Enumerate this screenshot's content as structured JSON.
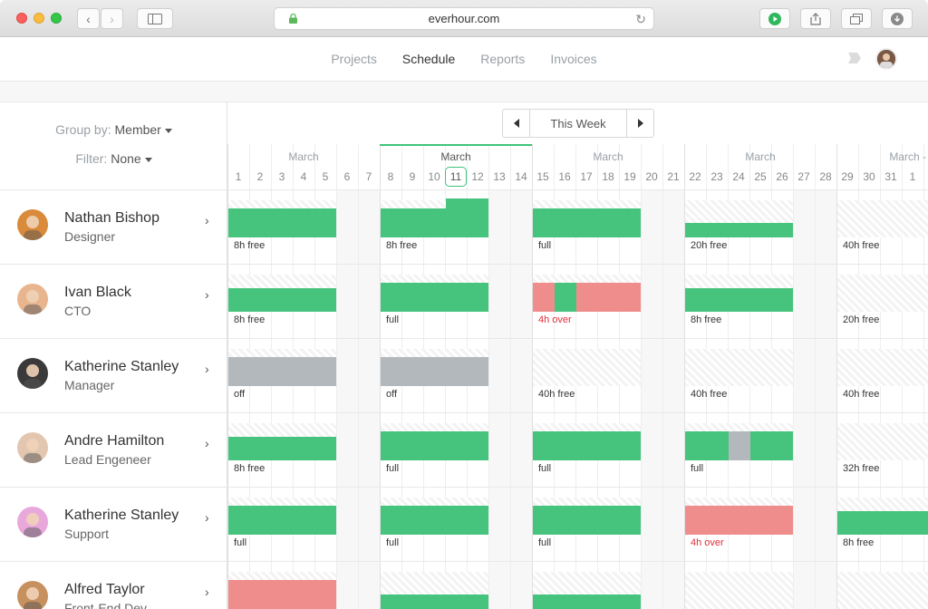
{
  "browser": {
    "url": "everhour.com"
  },
  "nav": {
    "items": [
      "Projects",
      "Schedule",
      "Reports",
      "Invoices"
    ],
    "active": "Schedule"
  },
  "controls": {
    "group_label": "Group by:",
    "group_value": "Member",
    "filter_label": "Filter:",
    "filter_value": "None"
  },
  "week_label": "This Week",
  "colors": {
    "green": "#46c47e",
    "red": "#ef8c8c",
    "gray": "#b3b8bd",
    "today": "#3fc47a"
  },
  "weeks": [
    {
      "month": "March",
      "days": [
        "1",
        "2",
        "3",
        "4",
        "5",
        "6",
        "7"
      ]
    },
    {
      "month": "March",
      "days": [
        "8",
        "9",
        "10",
        "11",
        "12",
        "13",
        "14"
      ],
      "current": true,
      "today": "11"
    },
    {
      "month": "March",
      "days": [
        "15",
        "16",
        "17",
        "18",
        "19",
        "20",
        "21"
      ]
    },
    {
      "month": "March",
      "days": [
        "22",
        "23",
        "24",
        "25",
        "26",
        "27",
        "28"
      ]
    },
    {
      "month": "March - A",
      "days": [
        "29",
        "30",
        "31",
        "1"
      ]
    }
  ],
  "members": [
    {
      "name": "Nathan Bishop",
      "role": "Designer",
      "weeks": [
        {
          "caption": "8h free",
          "segments": [
            [
              "green",
              0.0,
              1.0
            ]
          ]
        },
        {
          "caption": "8h free",
          "segments": [
            [
              "green",
              0.0,
              1.0
            ]
          ],
          "tall": [
            0.6,
            1.0
          ]
        },
        {
          "caption": "full",
          "segments": [
            [
              "green",
              0.0,
              1.0
            ]
          ]
        },
        {
          "caption": "20h free",
          "segments": [
            [
              "green",
              0.0,
              1.0
            ]
          ],
          "level": 0.5
        },
        {
          "caption": "40h free",
          "segments": []
        }
      ]
    },
    {
      "name": "Ivan Black",
      "role": "CTO",
      "weeks": [
        {
          "caption": "8h free",
          "segments": [
            [
              "green",
              0.0,
              1.0
            ]
          ],
          "level": 0.8
        },
        {
          "caption": "full",
          "segments": [
            [
              "green",
              0.0,
              1.0
            ]
          ]
        },
        {
          "caption": "4h over",
          "over": true,
          "segments": [
            [
              "red",
              0.0,
              0.2
            ],
            [
              "green",
              0.2,
              0.4
            ],
            [
              "red",
              0.4,
              1.0
            ]
          ]
        },
        {
          "caption": "8h free",
          "segments": [
            [
              "green",
              0.0,
              1.0
            ]
          ],
          "level": 0.8
        },
        {
          "caption": "20h free",
          "segments": []
        }
      ]
    },
    {
      "name": "Katherine Stanley",
      "role": "Manager",
      "weeks": [
        {
          "caption": "off",
          "segments": [
            [
              "gray",
              0.0,
              1.0
            ]
          ]
        },
        {
          "caption": "off",
          "segments": [
            [
              "gray",
              0.0,
              1.0
            ]
          ]
        },
        {
          "caption": "40h free",
          "segments": []
        },
        {
          "caption": "40h free",
          "segments": []
        },
        {
          "caption": "40h free",
          "segments": []
        }
      ]
    },
    {
      "name": "Andre Hamilton",
      "role": "Lead Engeneer",
      "weeks": [
        {
          "caption": "8h free",
          "segments": [
            [
              "green",
              0.0,
              1.0
            ]
          ],
          "level": 0.8
        },
        {
          "caption": "full",
          "segments": [
            [
              "green",
              0.0,
              1.0
            ]
          ]
        },
        {
          "caption": "full",
          "segments": [
            [
              "green",
              0.0,
              1.0
            ]
          ]
        },
        {
          "caption": "full",
          "segments": [
            [
              "green",
              0.0,
              0.4
            ],
            [
              "gray",
              0.4,
              0.6
            ],
            [
              "green",
              0.6,
              1.0
            ]
          ]
        },
        {
          "caption": "32h free",
          "segments": []
        }
      ]
    },
    {
      "name": "Katherine Stanley",
      "role": "Support",
      "weeks": [
        {
          "caption": "full",
          "segments": [
            [
              "green",
              0.0,
              1.0
            ]
          ]
        },
        {
          "caption": "full",
          "segments": [
            [
              "green",
              0.0,
              1.0
            ]
          ]
        },
        {
          "caption": "full",
          "segments": [
            [
              "green",
              0.0,
              1.0
            ]
          ]
        },
        {
          "caption": "4h over",
          "over": true,
          "segments": [
            [
              "red",
              0.0,
              1.0
            ]
          ]
        },
        {
          "caption": "8h free",
          "segments": [
            [
              "green",
              0.0,
              1.0
            ]
          ],
          "level": 0.8
        }
      ]
    },
    {
      "name": "Alfred Taylor",
      "role": "Front-End Dev",
      "weeks": [
        {
          "caption": "",
          "segments": [
            [
              "red",
              0.0,
              1.0
            ]
          ]
        },
        {
          "caption": "",
          "segments": [
            [
              "green",
              0.0,
              1.0
            ]
          ],
          "level": 0.5
        },
        {
          "caption": "",
          "segments": [
            [
              "green",
              0.0,
              1.0
            ]
          ],
          "level": 0.5
        },
        {
          "caption": "",
          "segments": []
        },
        {
          "caption": "",
          "segments": []
        }
      ]
    }
  ]
}
